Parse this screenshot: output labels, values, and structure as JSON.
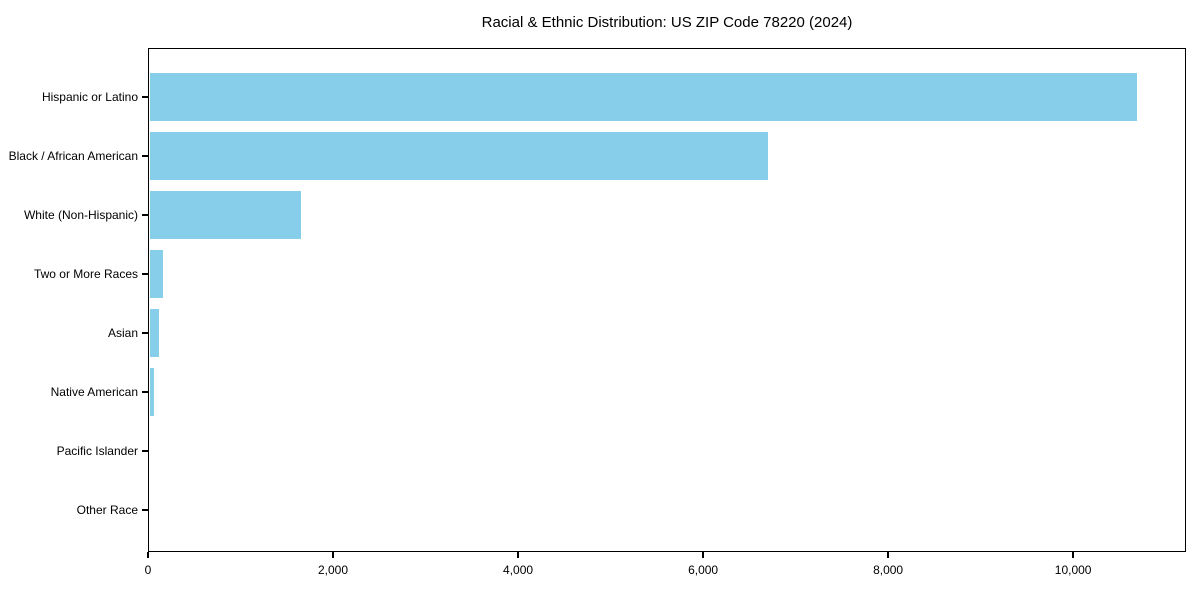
{
  "chart_data": {
    "type": "bar",
    "orientation": "horizontal",
    "title": "Racial & Ethnic Distribution: US ZIP Code 78220 (2024)",
    "categories": [
      "Hispanic or Latino",
      "Black / African American",
      "White (Non-Hispanic)",
      "Two or More Races",
      "Asian",
      "Native American",
      "Pacific Islander",
      "Other Race"
    ],
    "values": [
      10690,
      6705,
      1655,
      165,
      120,
      60,
      0,
      0
    ],
    "xlabel": "",
    "ylabel": "",
    "xlim": [
      0,
      11220
    ],
    "x_ticks": [
      0,
      2000,
      4000,
      6000,
      8000,
      10000
    ],
    "x_tick_labels": [
      "0",
      "2,000",
      "4,000",
      "6,000",
      "8,000",
      "10,000"
    ],
    "bar_color": "#87CEEB",
    "text_color": "#000000",
    "spine_color": "#000000",
    "grid": false,
    "legend": null,
    "category_order": "top-to-bottom"
  }
}
